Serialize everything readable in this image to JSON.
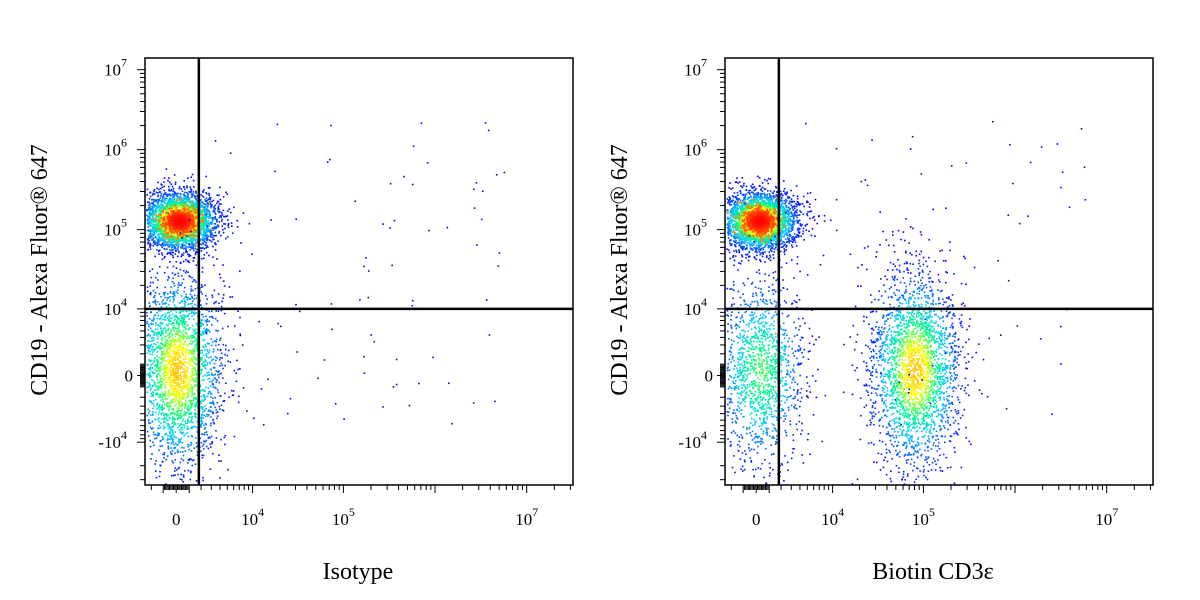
{
  "chart_data": [
    {
      "type": "scatter",
      "subtype": "flow-cytometry-density-dot-plot",
      "xlabel": "Isotype",
      "ylabel": "CD19 - Alexa Fluor® 647",
      "x_scale": "biexponential",
      "y_scale": "biexponential",
      "x_ticks": [
        {
          "base": "0",
          "exp": "",
          "value": 0
        },
        {
          "base": "10",
          "exp": "4",
          "value": 10000
        },
        {
          "base": "10",
          "exp": "5",
          "value": 100000
        },
        {
          "base": "10",
          "exp": "7",
          "value": 10000000
        }
      ],
      "y_ticks": [
        {
          "base": "10",
          "exp": "7",
          "value": 10000000
        },
        {
          "base": "10",
          "exp": "6",
          "value": 1000000
        },
        {
          "base": "10",
          "exp": "5",
          "value": 100000
        },
        {
          "base": "10",
          "exp": "4",
          "value": 10000
        },
        {
          "base": "0",
          "exp": "",
          "value": 0
        },
        {
          "base": "-10",
          "exp": "4",
          "value": -10000
        }
      ],
      "gates": {
        "x": 1800,
        "y": 10000
      },
      "populations": [
        {
          "center_x": 200,
          "center_y": 130000,
          "spread": "tight",
          "density": "high"
        },
        {
          "center_x": 100,
          "center_y": 500,
          "spread": "wide",
          "density": "medium"
        }
      ],
      "colormap": [
        "#0000ff",
        "#00c8ff",
        "#00ff80",
        "#ffff00",
        "#ff8000",
        "#ff0000"
      ]
    },
    {
      "type": "scatter",
      "subtype": "flow-cytometry-density-dot-plot",
      "xlabel": "Biotin CD3ε",
      "ylabel": "CD19 - Alexa Fluor® 647",
      "x_scale": "biexponential",
      "y_scale": "biexponential",
      "x_ticks": [
        {
          "base": "0",
          "exp": "",
          "value": 0
        },
        {
          "base": "10",
          "exp": "4",
          "value": 10000
        },
        {
          "base": "10",
          "exp": "5",
          "value": 100000
        },
        {
          "base": "10",
          "exp": "7",
          "value": 10000000
        }
      ],
      "y_ticks": [
        {
          "base": "10",
          "exp": "7",
          "value": 10000000
        },
        {
          "base": "10",
          "exp": "6",
          "value": 1000000
        },
        {
          "base": "10",
          "exp": "5",
          "value": 100000
        },
        {
          "base": "10",
          "exp": "4",
          "value": 10000
        },
        {
          "base": "0",
          "exp": "",
          "value": 0
        },
        {
          "base": "-10",
          "exp": "4",
          "value": -10000
        }
      ],
      "gates": {
        "x": 1800,
        "y": 10000
      },
      "populations": [
        {
          "center_x": 200,
          "center_y": 130000,
          "spread": "tight",
          "density": "high"
        },
        {
          "center_x": 300,
          "center_y": 500,
          "spread": "wide",
          "density": "low"
        },
        {
          "center_x": 80000,
          "center_y": 500,
          "spread": "wide",
          "density": "medium"
        }
      ],
      "colormap": [
        "#0000ff",
        "#00c8ff",
        "#00ff80",
        "#ffff00",
        "#ff8000",
        "#ff0000"
      ]
    }
  ]
}
